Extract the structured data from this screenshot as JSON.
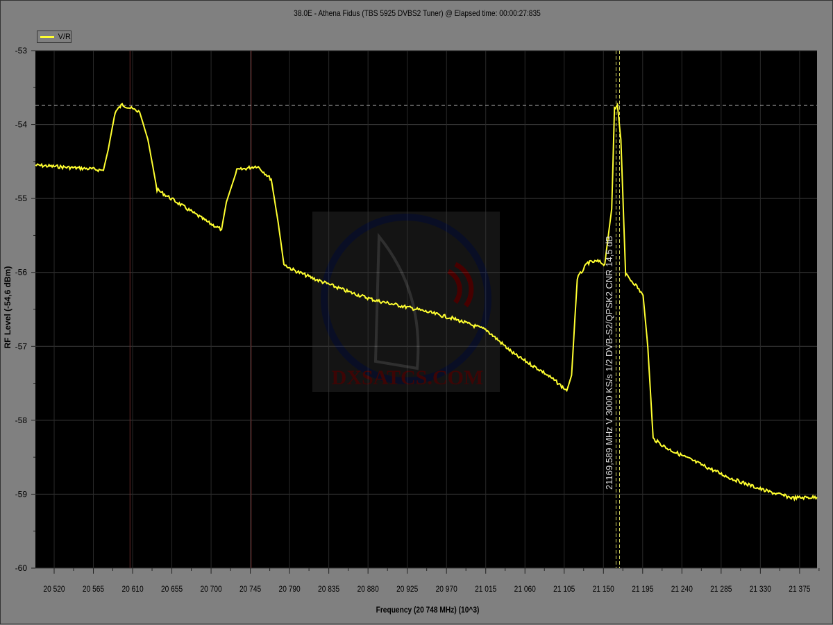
{
  "window_title": "38.0E - Athena Fidus (TBS 5925 DVBS2 Tuner) @ Elapsed time: 00:00:27:835",
  "watermark": "DXSATCS.COM",
  "chart_data": {
    "type": "line",
    "title": "38.0E - Athena Fidus (TBS 5925 DVBS2 Tuner) @ Elapsed time: 00:00:27:835",
    "xlabel": "Frequency  (20 748 MHz) (10^3)",
    "ylabel": "RF Level (-54,6 dBm)",
    "xlim": [
      20498.5,
      21395
    ],
    "ylim": [
      -60,
      -53
    ],
    "x_ticks": [
      20520,
      20565,
      20610,
      20655,
      20700,
      20745,
      20790,
      20835,
      20880,
      20925,
      20970,
      21015,
      21060,
      21105,
      21150,
      21195,
      21240,
      21285,
      21330,
      21375
    ],
    "x_tick_labels": [
      "20 520",
      "20 565",
      "20 610",
      "20 655",
      "20 700",
      "20 745",
      "20 790",
      "20 835",
      "20 880",
      "20 925",
      "20 970",
      "21 015",
      "21 060",
      "21 105",
      "21 150",
      "21 195",
      "21 240",
      "21 285",
      "21 330",
      "21 375"
    ],
    "y_ticks": [
      -53,
      -54,
      -55,
      -56,
      -57,
      -58,
      -59,
      -60
    ],
    "grid": true,
    "legend_position": "top-left",
    "series": [
      {
        "name": "V/R",
        "color": "#ffff30",
        "x": [
          20498.5,
          20562,
          20576.5,
          20582,
          20590,
          20598,
          20618,
          20627.5,
          20638,
          20666,
          20697.6,
          20712,
          20717.5,
          20729.5,
          20753,
          20769,
          20777,
          20783.5,
          20793,
          20817,
          20857,
          20889,
          20936.5,
          20976.5,
          21016,
          21048,
          21080,
          21096,
          21108,
          21113.5,
          21120,
          21132,
          21143.6,
          21151.5,
          21159.5,
          21162.7,
          21166,
          21170,
          21175.5,
          21187,
          21195.5,
          21201,
          21207,
          21223,
          21255,
          21295,
          21334.7,
          21366.6,
          21395
        ],
        "y": [
          -54.55,
          -54.6,
          -54.62,
          -54.34,
          -53.83,
          -53.73,
          -53.83,
          -54.2,
          -54.88,
          -55.09,
          -55.33,
          -55.42,
          -55.05,
          -54.62,
          -54.56,
          -54.74,
          -55.33,
          -55.89,
          -55.96,
          -56.08,
          -56.26,
          -56.38,
          -56.5,
          -56.62,
          -56.78,
          -57.11,
          -57.34,
          -57.48,
          -57.6,
          -57.39,
          -56.08,
          -55.87,
          -55.85,
          -55.89,
          -55.14,
          -53.78,
          -53.73,
          -54.2,
          -56.03,
          -56.17,
          -56.31,
          -57.02,
          -58.25,
          -58.38,
          -58.56,
          -58.78,
          -58.95,
          -59.05,
          -59.04
        ]
      }
    ],
    "markers": {
      "red_vertical": [
        20607,
        20746
      ],
      "yellow_vertical": [
        21164.5,
        21168.5
      ],
      "peak_level": -53.74
    },
    "annotation": "21169,589 MHz  V  3000 KS/s  1/2  DVB-S2/QPSK2 CNR 14,5 dB"
  }
}
